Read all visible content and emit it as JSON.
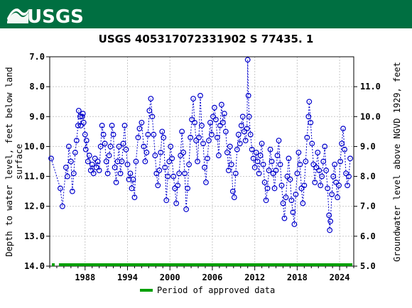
{
  "header": {
    "logo_text": "USGS",
    "logo_bg": "#006f41"
  },
  "chart_data": {
    "type": "scatter",
    "title": "USGS 405317072331902 S 77435. 1",
    "ylabel_left": "Depth to water level, feet below land surface",
    "ylabel_left_lines": [
      "Depth to water level, feet below land",
      "surface"
    ],
    "ylabel_right": "Groundwater level above NGVD 1929, feet",
    "y_left_range": [
      14.0,
      7.0
    ],
    "y_left_ticks": [
      7.0,
      8.0,
      9.0,
      10.0,
      11.0,
      12.0,
      13.0,
      14.0
    ],
    "y_left_tick_labels": [
      "7.0",
      "8.0",
      "9.0",
      "10.0",
      "11.0",
      "12.0",
      "13.0",
      "14.0"
    ],
    "y_right_ticks": [
      5.0,
      6.0,
      7.0,
      8.0,
      9.0,
      10.0,
      11.0
    ],
    "y_right_tick_labels": [
      "5.0",
      "6.0",
      "7.0",
      "8.0",
      "9.0",
      "10.0",
      "11.0"
    ],
    "x_range": [
      1983.0,
      2026.0
    ],
    "x_ticks": [
      1988,
      1994,
      2000,
      2006,
      2012,
      2018,
      2024
    ],
    "x_tick_labels": [
      "1988",
      "1994",
      "2000",
      "2006",
      "2012",
      "2018",
      "2024"
    ],
    "grid": true,
    "legend": {
      "label": "Period of approved data",
      "placement": "bottom-center",
      "color": "#00a000"
    },
    "series": [
      {
        "marker": "open-circle",
        "color": "#0000cc",
        "connect": "dashed",
        "points": [
          [
            1983.2,
            10.4
          ],
          [
            1984.5,
            11.4
          ],
          [
            1984.8,
            12.0
          ],
          [
            1985.3,
            10.7
          ],
          [
            1985.5,
            11.0
          ],
          [
            1985.7,
            10.0
          ],
          [
            1986.0,
            10.5
          ],
          [
            1986.2,
            11.5
          ],
          [
            1986.4,
            10.9
          ],
          [
            1986.6,
            10.2
          ],
          [
            1986.8,
            9.8
          ],
          [
            1987.0,
            9.3
          ],
          [
            1987.1,
            8.8
          ],
          [
            1987.3,
            9.0
          ],
          [
            1987.4,
            9.3
          ],
          [
            1987.6,
            9.0
          ],
          [
            1987.7,
            8.9
          ],
          [
            1987.8,
            9.2
          ],
          [
            1988.0,
            9.6
          ],
          [
            1988.1,
            10.1
          ],
          [
            1988.2,
            9.8
          ],
          [
            1988.4,
            10.5
          ],
          [
            1988.6,
            10.3
          ],
          [
            1988.8,
            10.8
          ],
          [
            1989.0,
            10.6
          ],
          [
            1989.2,
            10.9
          ],
          [
            1989.4,
            10.4
          ],
          [
            1989.6,
            10.7
          ],
          [
            1989.8,
            10.5
          ],
          [
            1990.0,
            10.8
          ],
          [
            1990.2,
            10.0
          ],
          [
            1990.4,
            9.3
          ],
          [
            1990.6,
            9.6
          ],
          [
            1990.8,
            9.9
          ],
          [
            1991.0,
            10.5
          ],
          [
            1991.2,
            10.9
          ],
          [
            1991.4,
            10.3
          ],
          [
            1991.6,
            10.0
          ],
          [
            1991.8,
            9.3
          ],
          [
            1992.0,
            9.6
          ],
          [
            1992.2,
            10.7
          ],
          [
            1992.4,
            11.2
          ],
          [
            1992.6,
            10.5
          ],
          [
            1992.8,
            10.0
          ],
          [
            1993.0,
            10.9
          ],
          [
            1993.2,
            10.5
          ],
          [
            1993.4,
            9.9
          ],
          [
            1993.6,
            9.3
          ],
          [
            1993.8,
            10.1
          ],
          [
            1994.0,
            10.6
          ],
          [
            1994.2,
            11.1
          ],
          [
            1994.4,
            10.9
          ],
          [
            1994.6,
            11.4
          ],
          [
            1994.8,
            11.1
          ],
          [
            1995.0,
            11.7
          ],
          [
            1995.2,
            10.5
          ],
          [
            1995.5,
            9.7
          ],
          [
            1995.7,
            9.4
          ],
          [
            1996.0,
            9.2
          ],
          [
            1996.3,
            10.0
          ],
          [
            1996.5,
            10.5
          ],
          [
            1996.7,
            10.2
          ],
          [
            1996.9,
            9.6
          ],
          [
            1997.1,
            8.8
          ],
          [
            1997.3,
            8.4
          ],
          [
            1997.5,
            9.0
          ],
          [
            1997.7,
            9.6
          ],
          [
            1997.9,
            10.3
          ],
          [
            1998.1,
            10.9
          ],
          [
            1998.3,
            11.3
          ],
          [
            1998.5,
            10.8
          ],
          [
            1998.7,
            10.2
          ],
          [
            1998.9,
            9.5
          ],
          [
            1999.1,
            9.7
          ],
          [
            1999.3,
            10.7
          ],
          [
            1999.5,
            11.8
          ],
          [
            1999.7,
            11.0
          ],
          [
            1999.9,
            10.5
          ],
          [
            2000.1,
            10.0
          ],
          [
            2000.3,
            10.4
          ],
          [
            2000.5,
            11.0
          ],
          [
            2000.7,
            11.4
          ],
          [
            2000.9,
            11.9
          ],
          [
            2001.1,
            11.3
          ],
          [
            2001.3,
            10.9
          ],
          [
            2001.5,
            10.3
          ],
          [
            2001.7,
            9.5
          ],
          [
            2001.9,
            10.2
          ],
          [
            2002.1,
            10.9
          ],
          [
            2002.3,
            12.1
          ],
          [
            2002.5,
            11.4
          ],
          [
            2002.7,
            10.6
          ],
          [
            2002.9,
            9.7
          ],
          [
            2003.1,
            9.1
          ],
          [
            2003.3,
            8.4
          ],
          [
            2003.5,
            9.2
          ],
          [
            2003.7,
            9.8
          ],
          [
            2003.9,
            10.5
          ],
          [
            2004.1,
            9.7
          ],
          [
            2004.3,
            8.3
          ],
          [
            2004.5,
            9.3
          ],
          [
            2004.7,
            9.9
          ],
          [
            2004.9,
            10.7
          ],
          [
            2005.1,
            11.2
          ],
          [
            2005.3,
            10.4
          ],
          [
            2005.5,
            9.8
          ],
          [
            2005.7,
            9.2
          ],
          [
            2005.9,
            9.6
          ],
          [
            2006.1,
            9.0
          ],
          [
            2006.3,
            8.7
          ],
          [
            2006.5,
            9.1
          ],
          [
            2006.7,
            9.7
          ],
          [
            2006.9,
            10.3
          ],
          [
            2007.1,
            9.3
          ],
          [
            2007.3,
            8.6
          ],
          [
            2007.5,
            9.2
          ],
          [
            2007.7,
            8.9
          ],
          [
            2007.9,
            9.5
          ],
          [
            2008.1,
            10.2
          ],
          [
            2008.3,
            10.8
          ],
          [
            2008.5,
            10.0
          ],
          [
            2008.7,
            10.6
          ],
          [
            2008.9,
            11.5
          ],
          [
            2009.1,
            11.7
          ],
          [
            2009.3,
            10.9
          ],
          [
            2009.5,
            10.1
          ],
          [
            2009.7,
            9.6
          ],
          [
            2009.9,
            9.9
          ],
          [
            2010.1,
            9.3
          ],
          [
            2010.3,
            9.0
          ],
          [
            2010.5,
            9.5
          ],
          [
            2010.7,
            9.8
          ],
          [
            2010.9,
            9.4
          ],
          [
            2011.0,
            7.1
          ],
          [
            2011.1,
            8.3
          ],
          [
            2011.2,
            9.0
          ],
          [
            2011.4,
            9.6
          ],
          [
            2011.6,
            10.1
          ],
          [
            2011.8,
            10.4
          ],
          [
            2012.0,
            10.7
          ],
          [
            2012.2,
            10.2
          ],
          [
            2012.4,
            10.5
          ],
          [
            2012.6,
            10.9
          ],
          [
            2012.8,
            10.3
          ],
          [
            2013.0,
            9.9
          ],
          [
            2013.2,
            10.6
          ],
          [
            2013.4,
            11.2
          ],
          [
            2013.6,
            11.8
          ],
          [
            2013.8,
            11.4
          ],
          [
            2014.0,
            10.8
          ],
          [
            2014.2,
            10.1
          ],
          [
            2014.4,
            10.5
          ],
          [
            2014.6,
            10.9
          ],
          [
            2014.8,
            11.4
          ],
          [
            2015.0,
            10.8
          ],
          [
            2015.2,
            10.3
          ],
          [
            2015.4,
            9.8
          ],
          [
            2015.6,
            10.6
          ],
          [
            2015.8,
            11.3
          ],
          [
            2016.0,
            11.9
          ],
          [
            2016.2,
            12.4
          ],
          [
            2016.4,
            11.7
          ],
          [
            2016.6,
            11.0
          ],
          [
            2016.8,
            10.4
          ],
          [
            2017.0,
            11.1
          ],
          [
            2017.2,
            11.8
          ],
          [
            2017.4,
            12.2
          ],
          [
            2017.6,
            12.6
          ],
          [
            2017.8,
            11.6
          ],
          [
            2018.0,
            10.9
          ],
          [
            2018.2,
            10.2
          ],
          [
            2018.4,
            10.6
          ],
          [
            2018.6,
            11.4
          ],
          [
            2018.8,
            11.9
          ],
          [
            2019.0,
            11.3
          ],
          [
            2019.2,
            10.5
          ],
          [
            2019.4,
            9.7
          ],
          [
            2019.6,
            9.0
          ],
          [
            2019.7,
            8.5
          ],
          [
            2019.9,
            9.2
          ],
          [
            2020.1,
            9.9
          ],
          [
            2020.3,
            10.6
          ],
          [
            2020.5,
            11.2
          ],
          [
            2020.7,
            10.7
          ],
          [
            2020.9,
            10.2
          ],
          [
            2021.1,
            10.8
          ],
          [
            2021.3,
            11.3
          ],
          [
            2021.5,
            11.0
          ],
          [
            2021.7,
            10.5
          ],
          [
            2021.9,
            10.0
          ],
          [
            2022.1,
            10.8
          ],
          [
            2022.3,
            11.4
          ],
          [
            2022.5,
            12.3
          ],
          [
            2022.6,
            12.8
          ],
          [
            2022.7,
            12.5
          ],
          [
            2022.9,
            11.6
          ],
          [
            2023.1,
            11.0
          ],
          [
            2023.3,
            10.6
          ],
          [
            2023.5,
            11.2
          ],
          [
            2023.7,
            11.7
          ],
          [
            2023.9,
            11.3
          ],
          [
            2024.1,
            10.5
          ],
          [
            2024.3,
            9.9
          ],
          [
            2024.5,
            9.4
          ],
          [
            2024.7,
            10.1
          ],
          [
            2024.9,
            10.9
          ],
          [
            2025.1,
            11.3
          ],
          [
            2025.3,
            11.0
          ],
          [
            2025.5,
            10.4
          ]
        ]
      }
    ]
  }
}
